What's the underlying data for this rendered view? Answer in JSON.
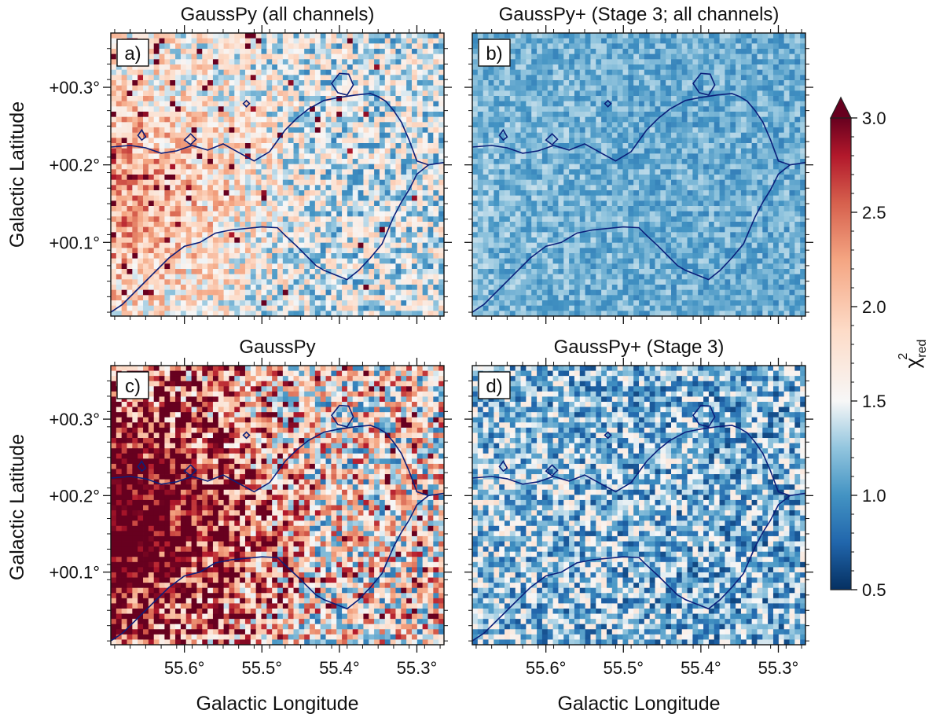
{
  "chart_data": {
    "type": "heatmap",
    "colormap": "RdBu_r",
    "colorbar": {
      "label_main": "χ",
      "label_sup": "2",
      "label_sub": "red",
      "min": 0.5,
      "max": 3.0,
      "extend": "max",
      "ticks": [
        "3.0",
        "2.5",
        "2.0",
        "1.5",
        "1.0",
        "0.5"
      ]
    },
    "xlabel": "Galactic Longitude",
    "ylabel": "Galactic Latitude",
    "x_ticks": [
      "55.6°",
      "55.5°",
      "55.4°",
      "55.3°"
    ],
    "y_ticks": [
      "+00.3°",
      "+00.2°",
      "+00.1°"
    ],
    "xlim": [
      55.695,
      55.265
    ],
    "ylim": [
      0.005,
      0.37
    ],
    "panels": [
      {
        "letter": "a)",
        "title": "GaussPy (all channels)",
        "noise_level": 1.45,
        "noise_amp": 0.55,
        "left_boost": 0.6,
        "hot_fraction": 0.03
      },
      {
        "letter": "b)",
        "title": "GaussPy+ (Stage 3; all channels)",
        "noise_level": 1.12,
        "noise_amp": 0.22,
        "left_boost": 0.05,
        "hot_fraction": 0.0
      },
      {
        "letter": "c)",
        "title": "GaussPy",
        "noise_level": 1.8,
        "noise_amp": 1.0,
        "left_boost": 1.4,
        "hot_fraction": 0.12
      },
      {
        "letter": "d)",
        "title": "GaussPy+ (Stage 3)",
        "noise_level": 1.15,
        "noise_amp": 0.55,
        "left_boost": 0.1,
        "hot_fraction": 0.0
      }
    ],
    "contour_upper": [
      [
        55.695,
        0.223
      ],
      [
        55.67,
        0.225
      ],
      [
        55.65,
        0.222
      ],
      [
        55.63,
        0.215
      ],
      [
        55.61,
        0.218
      ],
      [
        55.59,
        0.225
      ],
      [
        55.57,
        0.219
      ],
      [
        55.55,
        0.227
      ],
      [
        55.53,
        0.216
      ],
      [
        55.51,
        0.205
      ],
      [
        55.49,
        0.217
      ],
      [
        55.47,
        0.245
      ],
      [
        55.455,
        0.26
      ],
      [
        55.44,
        0.272
      ],
      [
        55.42,
        0.283
      ],
      [
        55.4,
        0.287
      ],
      [
        55.38,
        0.29
      ],
      [
        55.36,
        0.292
      ],
      [
        55.35,
        0.288
      ],
      [
        55.34,
        0.282
      ],
      [
        55.33,
        0.27
      ],
      [
        55.32,
        0.255
      ],
      [
        55.31,
        0.232
      ],
      [
        55.3,
        0.205
      ],
      [
        55.285,
        0.2
      ],
      [
        55.265,
        0.203
      ]
    ],
    "contour_lower": [
      [
        55.695,
        0.01
      ],
      [
        55.68,
        0.02
      ],
      [
        55.66,
        0.04
      ],
      [
        55.64,
        0.06
      ],
      [
        55.62,
        0.08
      ],
      [
        55.6,
        0.095
      ],
      [
        55.58,
        0.1
      ],
      [
        55.56,
        0.112
      ],
      [
        55.54,
        0.116
      ],
      [
        55.52,
        0.118
      ],
      [
        55.5,
        0.12
      ],
      [
        55.48,
        0.119
      ],
      [
        55.47,
        0.109
      ],
      [
        55.455,
        0.095
      ],
      [
        55.44,
        0.08
      ],
      [
        55.43,
        0.07
      ],
      [
        55.42,
        0.064
      ],
      [
        55.405,
        0.058
      ],
      [
        55.39,
        0.052
      ],
      [
        55.375,
        0.064
      ],
      [
        55.36,
        0.08
      ],
      [
        55.345,
        0.098
      ],
      [
        55.33,
        0.133
      ],
      [
        55.32,
        0.152
      ],
      [
        55.31,
        0.168
      ],
      [
        55.3,
        0.188
      ],
      [
        55.285,
        0.2
      ]
    ],
    "contour_islands": [
      [
        [
          55.41,
          0.305
        ],
        [
          55.4,
          0.318
        ],
        [
          55.388,
          0.317
        ],
        [
          55.382,
          0.303
        ],
        [
          55.39,
          0.29
        ],
        [
          55.402,
          0.293
        ],
        [
          55.41,
          0.305
        ]
      ],
      [
        [
          55.66,
          0.238
        ],
        [
          55.655,
          0.245
        ],
        [
          55.65,
          0.236
        ],
        [
          55.655,
          0.232
        ],
        [
          55.66,
          0.238
        ]
      ],
      [
        [
          55.6,
          0.232
        ],
        [
          55.592,
          0.24
        ],
        [
          55.585,
          0.233
        ],
        [
          55.592,
          0.226
        ],
        [
          55.6,
          0.232
        ]
      ],
      [
        [
          55.524,
          0.279
        ],
        [
          55.52,
          0.283
        ],
        [
          55.516,
          0.279
        ],
        [
          55.52,
          0.275
        ],
        [
          55.524,
          0.279
        ]
      ]
    ]
  }
}
